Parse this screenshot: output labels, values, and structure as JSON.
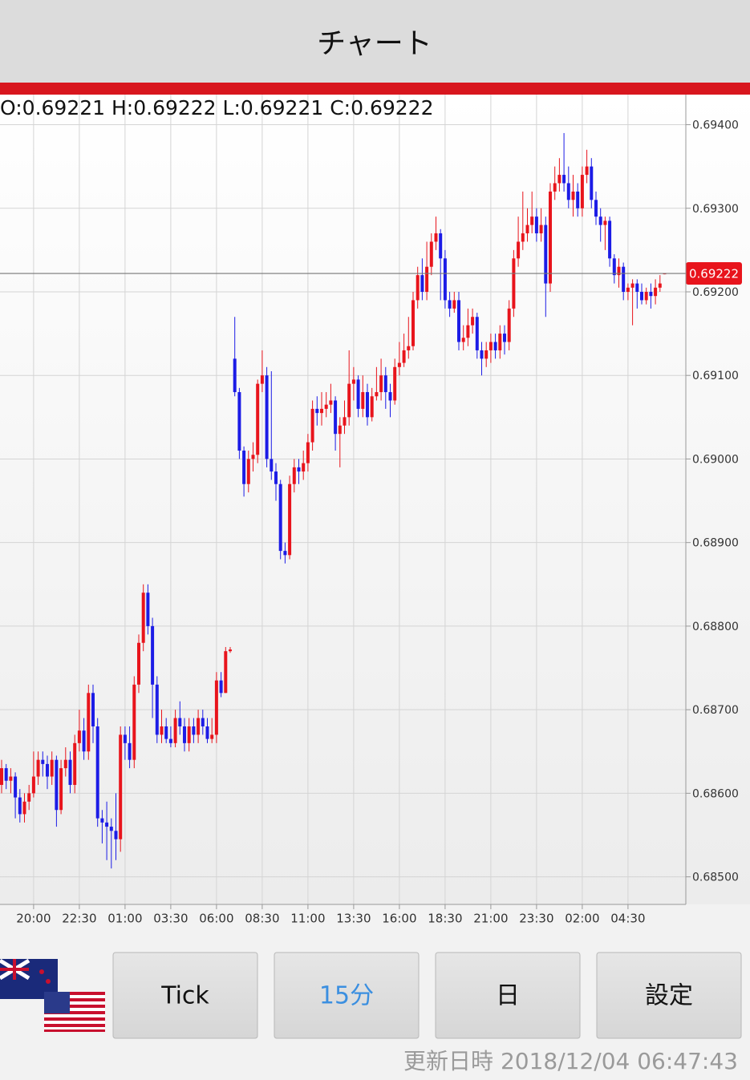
{
  "header": {
    "title": "チャート"
  },
  "chart_data": {
    "type": "candlestick",
    "info": "O:0.69221 H:0.69222 L:0.69221 C:0.69222",
    "current_price": 0.69222,
    "up_color": "#e8141c",
    "down_color": "#1c1ce6",
    "grid": true,
    "open": [
      0.6861,
      0.6863,
      0.68615,
      0.6862,
      0.68595,
      0.68575,
      0.6859,
      0.686,
      0.6862,
      0.6864,
      0.68635,
      0.6862,
      0.6864,
      0.6858,
      0.6863,
      0.6864,
      0.6861,
      0.6866,
      0.68675,
      0.6865,
      0.6872,
      0.6868,
      0.6857,
      0.68565,
      0.6856,
      0.68555,
      0.68545,
      0.6867,
      0.6866,
      0.6864,
      0.6873,
      0.6878,
      0.6884,
      0.688,
      0.6873,
      0.6867,
      0.6868,
      0.68665,
      0.6866,
      0.6869,
      0.6868,
      0.6866,
      0.6868,
      0.6867,
      0.6869,
      0.6868,
      0.68665,
      0.6867,
      0.68735,
      0.6872,
      0.6877,
      0.6912,
      0.6908,
      0.6901,
      0.6897,
      0.69,
      0.69005,
      0.6909,
      0.691,
      0.69,
      0.68985,
      0.6897,
      0.6889,
      0.68885,
      0.6897,
      0.6899,
      0.68985,
      0.68995,
      0.6902,
      0.6906,
      0.69055,
      0.6906,
      0.69065,
      0.6907,
      0.6903,
      0.6904,
      0.6905,
      0.6909,
      0.69095,
      0.6906,
      0.6908,
      0.6905,
      0.69075,
      0.6908,
      0.691,
      0.6908,
      0.6907,
      0.6911,
      0.69115,
      0.6913,
      0.69135,
      0.6919,
      0.6922,
      0.692,
      0.6923,
      0.6926,
      0.6927,
      0.6924,
      0.6919,
      0.6918,
      0.6919,
      0.6914,
      0.69145,
      0.6916,
      0.6917,
      0.6913,
      0.6912,
      0.6913,
      0.6914,
      0.6913,
      0.6915,
      0.6914,
      0.6918,
      0.6924,
      0.6926,
      0.6927,
      0.6928,
      0.6929,
      0.6927,
      0.6928,
      0.6921,
      0.6932,
      0.6933,
      0.6934,
      0.6933,
      0.6931,
      0.6932,
      0.693,
      0.6934,
      0.6935,
      0.6931,
      0.6929,
      0.6928,
      0.69285,
      0.6924,
      0.6922,
      0.6923,
      0.692,
      0.69205,
      0.6921,
      0.692,
      0.6919,
      0.692,
      0.69195,
      0.69205,
      0.69221
    ],
    "high": [
      0.6864,
      0.68635,
      0.6863,
      0.68625,
      0.68605,
      0.686,
      0.6861,
      0.6865,
      0.6865,
      0.6865,
      0.68645,
      0.6865,
      0.68645,
      0.6864,
      0.68655,
      0.6865,
      0.6867,
      0.687,
      0.6869,
      0.6873,
      0.6873,
      0.6869,
      0.6858,
      0.6859,
      0.6857,
      0.686,
      0.6868,
      0.6868,
      0.6868,
      0.6874,
      0.6879,
      0.6885,
      0.6885,
      0.6881,
      0.6874,
      0.687,
      0.6869,
      0.6868,
      0.687,
      0.6871,
      0.6869,
      0.6869,
      0.6869,
      0.687,
      0.687,
      0.6869,
      0.6869,
      0.68745,
      0.68745,
      0.68775,
      0.68775,
      0.6917,
      0.69085,
      0.69015,
      0.6901,
      0.6902,
      0.69095,
      0.6913,
      0.6911,
      0.69105,
      0.68995,
      0.68975,
      0.689,
      0.6898,
      0.69,
      0.69,
      0.6901,
      0.6903,
      0.6907,
      0.69075,
      0.6908,
      0.6908,
      0.6909,
      0.69075,
      0.6905,
      0.6907,
      0.6913,
      0.6911,
      0.691,
      0.691,
      0.6909,
      0.69085,
      0.6911,
      0.6912,
      0.6911,
      0.6909,
      0.6912,
      0.6914,
      0.6915,
      0.6917,
      0.692,
      0.6923,
      0.6924,
      0.6926,
      0.6927,
      0.6929,
      0.69275,
      0.6925,
      0.692,
      0.692,
      0.692,
      0.6916,
      0.6918,
      0.6918,
      0.69175,
      0.6914,
      0.6914,
      0.6915,
      0.6915,
      0.6916,
      0.6916,
      0.6919,
      0.6925,
      0.6929,
      0.6932,
      0.693,
      0.6932,
      0.693,
      0.693,
      0.6929,
      0.6933,
      0.6935,
      0.6936,
      0.6939,
      0.6935,
      0.6934,
      0.6933,
      0.6935,
      0.6937,
      0.6936,
      0.6932,
      0.693,
      0.6929,
      0.6929,
      0.69245,
      0.6924,
      0.69235,
      0.6921,
      0.69215,
      0.69215,
      0.6921,
      0.69205,
      0.6921,
      0.69215,
      0.6922,
      0.69222
    ],
    "low": [
      0.686,
      0.68605,
      0.686,
      0.6857,
      0.68565,
      0.68565,
      0.6858,
      0.68595,
      0.6861,
      0.6862,
      0.68605,
      0.6861,
      0.6856,
      0.68575,
      0.6862,
      0.686,
      0.686,
      0.6865,
      0.6864,
      0.6864,
      0.6866,
      0.6856,
      0.6854,
      0.6852,
      0.6851,
      0.6852,
      0.6853,
      0.6864,
      0.6863,
      0.6863,
      0.6872,
      0.6877,
      0.6879,
      0.6869,
      0.6866,
      0.6866,
      0.6866,
      0.68655,
      0.68655,
      0.6867,
      0.6865,
      0.6865,
      0.6866,
      0.6866,
      0.6867,
      0.6866,
      0.6866,
      0.6866,
      0.68715,
      0.6872,
      0.68768,
      0.69075,
      0.69,
      0.68955,
      0.6896,
      0.68985,
      0.68995,
      0.6908,
      0.6899,
      0.68975,
      0.6895,
      0.6888,
      0.68875,
      0.6888,
      0.6896,
      0.6897,
      0.68975,
      0.68985,
      0.6901,
      0.6904,
      0.6904,
      0.6905,
      0.69055,
      0.6901,
      0.6899,
      0.6903,
      0.6904,
      0.6907,
      0.6905,
      0.6905,
      0.6904,
      0.69045,
      0.6907,
      0.6907,
      0.6906,
      0.6905,
      0.69065,
      0.691,
      0.6911,
      0.6912,
      0.6913,
      0.6918,
      0.6919,
      0.6919,
      0.6922,
      0.6925,
      0.6919,
      0.6918,
      0.6917,
      0.69175,
      0.6913,
      0.6913,
      0.69135,
      0.6915,
      0.6912,
      0.691,
      0.6911,
      0.69115,
      0.6912,
      0.6912,
      0.69125,
      0.6913,
      0.6917,
      0.6923,
      0.6925,
      0.6926,
      0.6927,
      0.6926,
      0.6926,
      0.6917,
      0.692,
      0.6931,
      0.6932,
      0.6932,
      0.693,
      0.6929,
      0.6929,
      0.6929,
      0.6933,
      0.693,
      0.6928,
      0.6926,
      0.6925,
      0.6923,
      0.6921,
      0.69205,
      0.6919,
      0.6919,
      0.6916,
      0.6918,
      0.69185,
      0.69185,
      0.6918,
      0.69185,
      0.692,
      0.69221
    ],
    "close": [
      0.6863,
      0.68615,
      0.6862,
      0.68595,
      0.68575,
      0.6859,
      0.686,
      0.6862,
      0.6864,
      0.68635,
      0.6862,
      0.6864,
      0.6858,
      0.6863,
      0.6864,
      0.6861,
      0.6866,
      0.68675,
      0.6865,
      0.6872,
      0.6868,
      0.6857,
      0.68565,
      0.6856,
      0.68555,
      0.68545,
      0.6867,
      0.6866,
      0.6864,
      0.6873,
      0.6878,
      0.6884,
      0.688,
      0.6873,
      0.6867,
      0.6868,
      0.68665,
      0.6866,
      0.6869,
      0.6868,
      0.6866,
      0.6868,
      0.6867,
      0.6869,
      0.6868,
      0.68665,
      0.6867,
      0.68735,
      0.6872,
      0.6877,
      0.68772,
      0.6908,
      0.6901,
      0.6897,
      0.69,
      0.69005,
      0.6909,
      0.691,
      0.69,
      0.68985,
      0.6897,
      0.6889,
      0.68885,
      0.6897,
      0.6899,
      0.68985,
      0.68995,
      0.6902,
      0.6906,
      0.69055,
      0.6906,
      0.69065,
      0.6907,
      0.6903,
      0.6904,
      0.6905,
      0.6909,
      0.69095,
      0.6906,
      0.6908,
      0.6905,
      0.69075,
      0.6908,
      0.691,
      0.6908,
      0.6907,
      0.6911,
      0.69115,
      0.6913,
      0.69135,
      0.6919,
      0.6922,
      0.692,
      0.6923,
      0.6926,
      0.6927,
      0.6924,
      0.6919,
      0.6918,
      0.6919,
      0.6914,
      0.69145,
      0.6916,
      0.6917,
      0.6913,
      0.6912,
      0.6913,
      0.6914,
      0.6913,
      0.6915,
      0.6914,
      0.6918,
      0.6924,
      0.6926,
      0.6927,
      0.6928,
      0.6929,
      0.6927,
      0.6928,
      0.6921,
      0.6932,
      0.6933,
      0.6934,
      0.6933,
      0.6931,
      0.6932,
      0.693,
      0.6934,
      0.6935,
      0.6931,
      0.6929,
      0.6928,
      0.69285,
      0.6924,
      0.6922,
      0.6923,
      0.692,
      0.69205,
      0.6921,
      0.692,
      0.6919,
      0.692,
      0.69195,
      0.69205,
      0.6921,
      0.69222
    ],
    "xlim": [
      -0.35,
      149.65
    ],
    "xticks": [
      {
        "value": 7,
        "label": "20:00"
      },
      {
        "value": 17,
        "label": "22:30"
      },
      {
        "value": 27,
        "label": "01:00"
      },
      {
        "value": 37,
        "label": "03:30"
      },
      {
        "value": 47,
        "label": "06:00"
      },
      {
        "value": 57,
        "label": "08:30"
      },
      {
        "value": 67,
        "label": "11:00"
      },
      {
        "value": 77,
        "label": "13:30"
      },
      {
        "value": 87,
        "label": "16:00"
      },
      {
        "value": 97,
        "label": "18:30"
      },
      {
        "value": 107,
        "label": "21:00"
      },
      {
        "value": 117,
        "label": "23:30"
      },
      {
        "value": 127,
        "label": "02:00"
      },
      {
        "value": 137,
        "label": "04:30"
      }
    ],
    "ylim": [
      0.68467,
      0.69436
    ],
    "yticks": [
      {
        "value": 0.685,
        "label": "0.68500"
      },
      {
        "value": 0.686,
        "label": "0.68600"
      },
      {
        "value": 0.687,
        "label": "0.68700"
      },
      {
        "value": 0.688,
        "label": "0.68800"
      },
      {
        "value": 0.689,
        "label": "0.68900"
      },
      {
        "value": 0.69,
        "label": "0.69000"
      },
      {
        "value": 0.691,
        "label": "0.69100"
      },
      {
        "value": 0.692,
        "label": "0.69200"
      },
      {
        "value": 0.693,
        "label": "0.69300"
      },
      {
        "value": 0.694,
        "label": "0.69400"
      }
    ]
  },
  "buttons": [
    "Tick",
    "15分",
    "日",
    "設定"
  ],
  "selected_button": 1,
  "footer": {
    "updated": "更新日時 2018/12/04 06:47:43"
  }
}
